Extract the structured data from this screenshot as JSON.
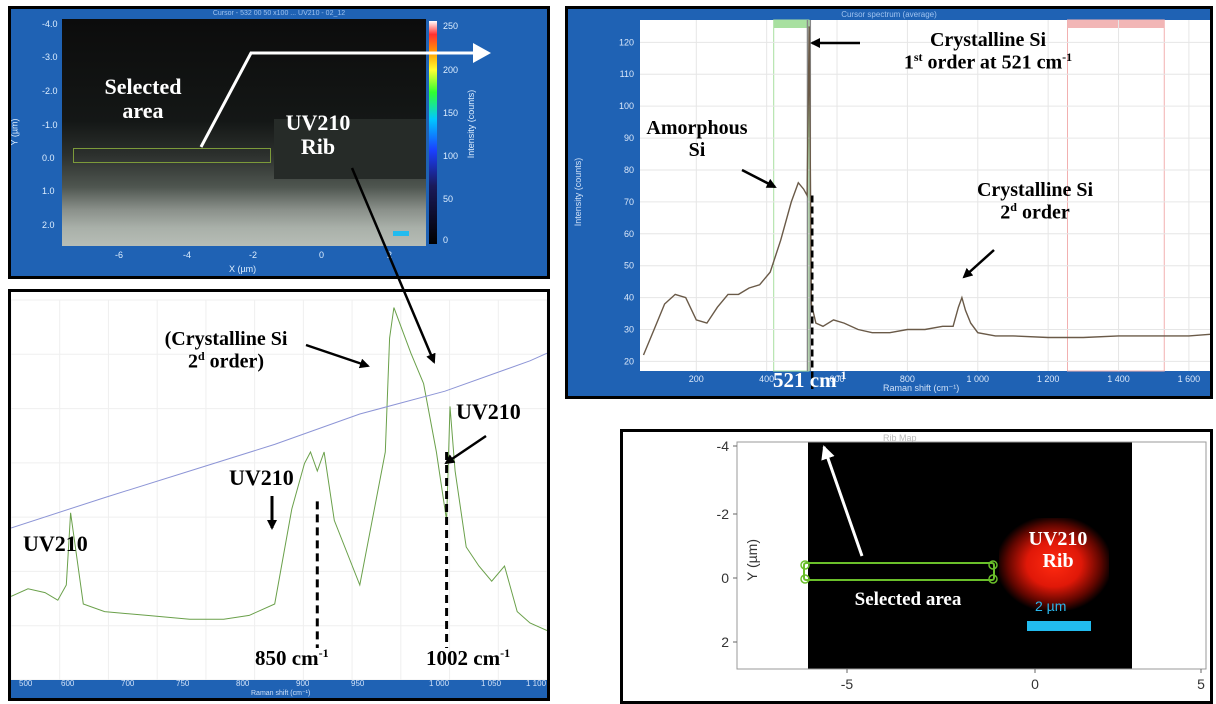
{
  "colors": {
    "panel_blue": "#1f62b4",
    "spectrum_green": "#6aa04a",
    "baseline_blue": "#8d95d6",
    "avg_spectrum": "#6a5a48",
    "rib_red": "#ff2a10",
    "selection_green": "#6abf2a",
    "scale_cyan": "#22bbee"
  },
  "panel_a": {
    "header": "Cursor - 532 00 50 x100 ... UV210 - 02_12",
    "ylabel": "Y (µm)",
    "xlabel": "X (µm)",
    "y_ticks": [
      "-4.0",
      "-3.0",
      "-2.0",
      "-1.0",
      "0.0",
      "1.0",
      "2.0"
    ],
    "x_ticks": [
      "-6",
      "-4",
      "-2",
      "0",
      "2"
    ],
    "colorbar_ticks": [
      "250",
      "200",
      "150",
      "100",
      "50",
      "0"
    ],
    "colorbar_label": "Intensity (counts)",
    "label_selected": "Selected area",
    "label_rib_1": "UV210",
    "label_rib_2": "Rib"
  },
  "panel_b": {
    "annotations": {
      "crystalline": "(Crystalline Si",
      "crystalline_order": "2",
      "crystalline_order_sup": "d",
      "crystalline_order_rest": " order)",
      "uv210_right": "UV210",
      "uv210_mid": "UV210",
      "uv210_left": "UV210",
      "peak_850": "850 cm",
      "peak_1002": "1002 cm",
      "exp": "-1"
    },
    "xlabel": "Raman shift (cm⁻¹)",
    "x_ticks": [
      "500",
      "600",
      "700",
      "750",
      "800",
      "900",
      "950",
      "1 000",
      "1 050",
      "1 100"
    ]
  },
  "panel_c": {
    "header": "Cursor spectrum (average)",
    "ylabel": "Intensity (counts)",
    "xlabel": "Raman shift (cm⁻¹)",
    "annotations": {
      "cryst1_line1": "Crystalline Si",
      "cryst1_pre": "1",
      "cryst1_sup": "st",
      "cryst1_post": " order at 521 cm",
      "cryst1_exp": "-1",
      "amorph_1": "Amorphous",
      "amorph_2": "Si",
      "cryst2_line1": "Crystalline Si",
      "cryst2_pre": "2",
      "cryst2_sup": "d",
      "cryst2_post": " order",
      "peak_521": "521 cm",
      "peak_exp": "-1"
    }
  },
  "panel_d": {
    "title": "Rib Map",
    "ylabel": "Y (µm)",
    "label_selected": "Selected area",
    "label_rib_1": "UV210",
    "label_rib_2": "Rib",
    "scale_label": "2 µm"
  },
  "chart_data": [
    {
      "type": "line",
      "id": "avg_spectrum",
      "xlabel": "Raman shift (cm⁻¹)",
      "ylabel": "Intensity (counts)",
      "xlim": [
        40,
        1660
      ],
      "ylim": [
        17,
        127
      ],
      "x_ticks": [
        200,
        400,
        600,
        800,
        1000,
        1200,
        1400,
        1600
      ],
      "y_ticks": [
        20,
        30,
        40,
        50,
        60,
        70,
        80,
        90,
        100,
        110,
        120
      ],
      "x_tick_labels": [
        "200",
        "400",
        "600",
        "800",
        "1 000",
        "1 200",
        "1 400",
        "1 600"
      ],
      "series": [
        {
          "x": [
            50,
            80,
            110,
            140,
            170,
            200,
            230,
            260,
            290,
            320,
            350,
            380,
            410,
            440,
            470,
            490,
            505,
            515,
            521,
            527,
            540,
            560,
            590,
            620,
            660,
            700,
            750,
            800,
            850,
            900,
            930,
            945,
            955,
            965,
            980,
            1000,
            1050,
            1100,
            1200,
            1300,
            1400,
            1500,
            1600,
            1660
          ],
          "y": [
            22,
            30,
            38,
            41,
            40,
            33,
            32,
            37,
            41,
            41,
            43,
            44,
            48,
            58,
            70,
            76,
            74,
            72,
            125,
            38,
            32,
            31,
            33,
            32,
            30,
            29,
            29,
            30,
            30,
            31,
            31,
            37,
            40,
            36,
            32,
            29,
            28,
            28,
            27.5,
            27.5,
            28,
            28,
            28,
            28.5
          ]
        }
      ]
    },
    {
      "type": "line",
      "id": "uv210_spectrum_zoom",
      "xlabel": "Raman shift (cm⁻¹)",
      "xlim": [
        490,
        1120
      ],
      "ylim": [
        0,
        100
      ],
      "series": [
        {
          "x": [
            490,
            510,
            530,
            545,
            555,
            560,
            575,
            600,
            650,
            700,
            740,
            770,
            800,
            820,
            835,
            842,
            850,
            858,
            870,
            900,
            930,
            935,
            940,
            950,
            960,
            975,
            990,
            1002,
            1006,
            1012,
            1025,
            1040,
            1055,
            1070,
            1085,
            1100,
            1120
          ],
          "y": [
            22,
            24,
            23,
            21,
            25,
            44,
            20,
            18,
            17,
            16,
            16,
            17,
            20,
            45,
            57,
            60,
            55,
            60,
            42,
            25,
            60,
            90,
            98,
            92,
            86,
            78,
            60,
            42,
            72,
            55,
            35,
            30,
            26,
            30,
            18,
            15,
            13
          ]
        },
        {
          "x": [
            490,
            600,
            700,
            800,
            900,
            1000,
            1100,
            1120
          ],
          "y": [
            40,
            48,
            55,
            62,
            70,
            76,
            84,
            86
          ]
        }
      ]
    }
  ]
}
